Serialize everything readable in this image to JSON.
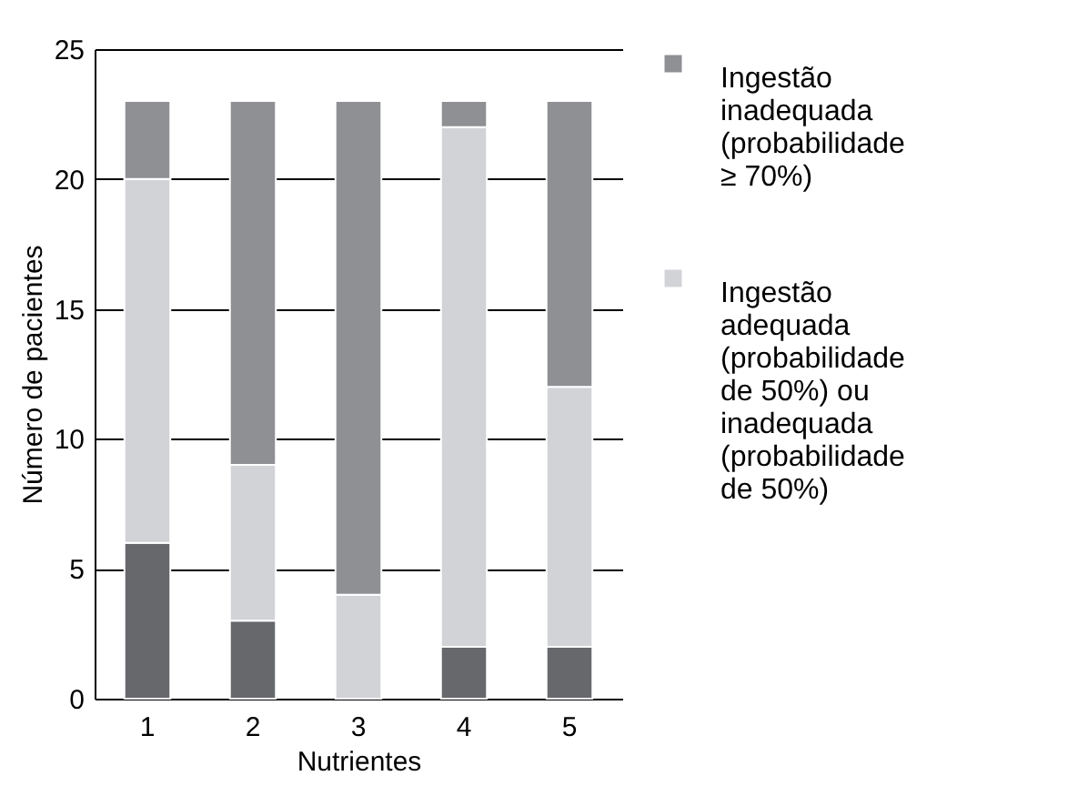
{
  "chart_data": {
    "type": "bar",
    "stacked": true,
    "xlabel": "Nutrientes",
    "ylabel": "Número de pacientes",
    "categories": [
      "1",
      "2",
      "3",
      "4",
      "5"
    ],
    "series": [
      {
        "color": "#66686c",
        "values": [
          6,
          3,
          0,
          2,
          2
        ]
      },
      {
        "name": "Ingestão adequada (probabilidade de 50%) ou inadequada (probabilidade de 50%)",
        "color": "#d1d3d7",
        "values": [
          14,
          6,
          4,
          20,
          10
        ]
      },
      {
        "name": "Ingestão inadequada (probabilidade ≥ 70%)",
        "color": "#8e9094",
        "values": [
          3,
          14,
          19,
          1,
          11
        ]
      }
    ],
    "ylim": [
      0,
      25
    ],
    "yticks": [
      0,
      5,
      10,
      15,
      20,
      25
    ],
    "grid": "y",
    "legend": "right"
  }
}
